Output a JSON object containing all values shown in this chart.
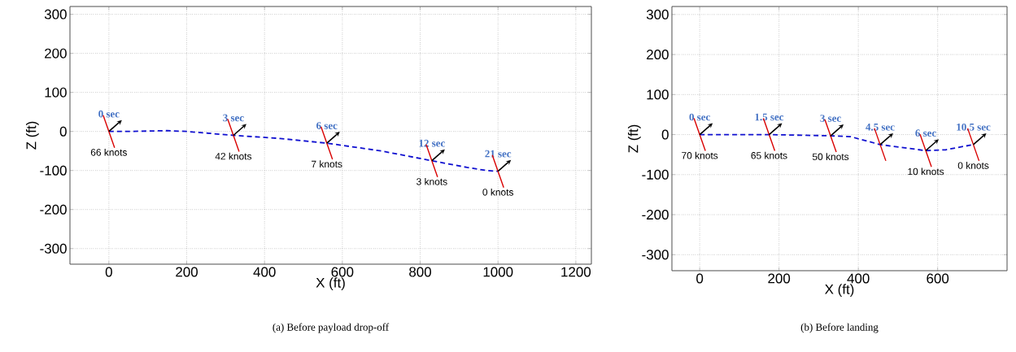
{
  "chart_data": [
    {
      "type": "line",
      "title": "(a)  Before payload drop-off",
      "xlabel": "X (ft)",
      "ylabel": "Z (ft)",
      "x": [
        0,
        50,
        150,
        200,
        320,
        440,
        560,
        700,
        830,
        920,
        970,
        1000
      ],
      "series": [
        {
          "color": "#1010d0",
          "values": [
            0,
            0,
            2,
            0,
            -10,
            -18,
            -30,
            -50,
            -75,
            -92,
            -100,
            -102
          ]
        }
      ],
      "xlim": [
        -100,
        1240
      ],
      "ylim": [
        -340,
        320
      ],
      "xticks": [
        0,
        200,
        400,
        600,
        800,
        1000,
        1200
      ],
      "yticks": [
        -300,
        -200,
        -100,
        0,
        100,
        200,
        300
      ],
      "grid": true,
      "line_style": "dashed",
      "annotations": [
        {
          "text": "0 sec",
          "x": 0,
          "y": 0
        },
        {
          "text": "3 sec",
          "x": 320,
          "y": -10
        },
        {
          "text": "6 sec",
          "x": 560,
          "y": -30
        },
        {
          "text": "12 sec",
          "x": 830,
          "y": -75
        },
        {
          "text": "21 sec",
          "x": 1000,
          "y": -102
        },
        {
          "text": "66 knots",
          "x": 0,
          "y": 0
        },
        {
          "text": "42 knots",
          "x": 320,
          "y": -10
        },
        {
          "text": "7 knots",
          "x": 560,
          "y": -30
        },
        {
          "text": "3 knots",
          "x": 830,
          "y": -75
        },
        {
          "text": "0 knots",
          "x": 1000,
          "y": -102
        }
      ]
    },
    {
      "type": "line",
      "title": "(b)  Before landing",
      "xlabel": "X (ft)",
      "ylabel": "Z (ft)",
      "x": [
        0,
        60,
        175,
        330,
        380,
        455,
        570,
        620,
        690
      ],
      "series": [
        {
          "color": "#1010d0",
          "values": [
            0,
            0,
            0,
            -3,
            -5,
            -25,
            -40,
            -38,
            -25
          ]
        }
      ],
      "xlim": [
        -70,
        775
      ],
      "ylim": [
        -340,
        320
      ],
      "xticks": [
        0,
        200,
        400,
        600
      ],
      "yticks": [
        -300,
        -200,
        -100,
        0,
        100,
        200,
        300
      ],
      "grid": true,
      "line_style": "dashed",
      "annotations": [
        {
          "text": "0 sec",
          "x": 0,
          "y": 0
        },
        {
          "text": "1.5 sec",
          "x": 175,
          "y": 0
        },
        {
          "text": "3 sec",
          "x": 330,
          "y": -3
        },
        {
          "text": "4.5 sec",
          "x": 455,
          "y": -25
        },
        {
          "text": "6 sec",
          "x": 570,
          "y": -40
        },
        {
          "text": "10.5 sec",
          "x": 690,
          "y": -25
        },
        {
          "text": "70 knots",
          "x": 0,
          "y": 0
        },
        {
          "text": "65 knots",
          "x": 175,
          "y": 0
        },
        {
          "text": "50 knots",
          "x": 330,
          "y": -3
        },
        {
          "text": "10 knots",
          "x": 570,
          "y": -40
        },
        {
          "text": "0 knots",
          "x": 690,
          "y": -25
        }
      ]
    }
  ]
}
